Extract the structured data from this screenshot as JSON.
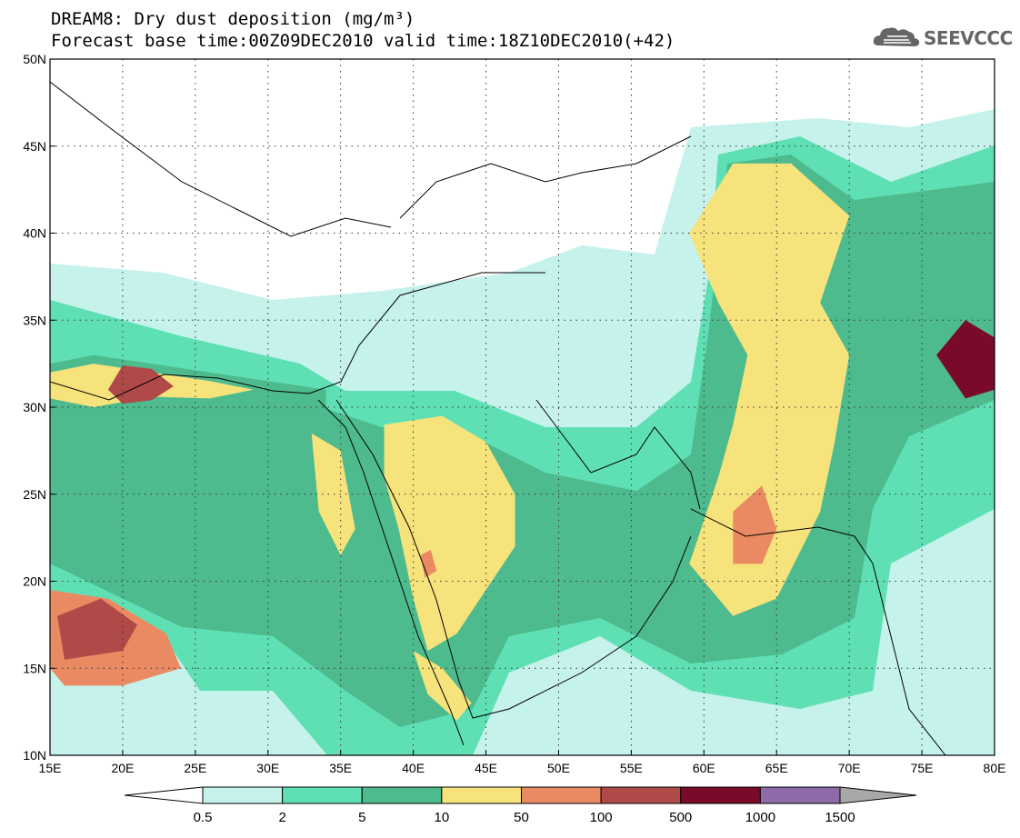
{
  "title": {
    "line1": "DREAM8: Dry dust deposition (mg/m³)",
    "line2": "Forecast base time:00Z09DEC2010 valid time:18Z10DEC2010(+42)"
  },
  "logo": {
    "text": "SEEVCCC",
    "icon": "cloud-icon"
  },
  "map": {
    "lon_range": [
      15,
      80
    ],
    "lat_range": [
      10,
      50
    ],
    "lon_ticks": [
      "15E",
      "20E",
      "25E",
      "30E",
      "35E",
      "40E",
      "45E",
      "50E",
      "55E",
      "60E",
      "65E",
      "70E",
      "75E",
      "80E"
    ],
    "lat_ticks": [
      "50N",
      "45N",
      "40N",
      "35N",
      "30N",
      "25N",
      "20N",
      "15N",
      "10N"
    ],
    "gridlines": "dotted"
  },
  "colorbar": {
    "labels": [
      "0.5",
      "2",
      "5",
      "10",
      "50",
      "100",
      "500",
      "1000",
      "1500"
    ],
    "colors": [
      "#c6f2ec",
      "#5fe0b4",
      "#4dbb8e",
      "#f7e37b",
      "#ea8a63",
      "#b04a48",
      "#7a0a2a",
      "#8f6aa8"
    ],
    "under_color": "#ffffff",
    "over_color": "#a8a8a8"
  },
  "regions": [
    {
      "name": "sahara-north-plume",
      "level": 2,
      "color": "#4dbb8e",
      "points": [
        [
          15,
          32.5
        ],
        [
          18,
          33
        ],
        [
          22,
          32.5
        ],
        [
          26,
          32
        ],
        [
          30,
          31.5
        ],
        [
          34,
          31
        ],
        [
          34,
          29.8
        ],
        [
          30,
          30
        ],
        [
          26,
          30.5
        ],
        [
          22,
          30.3
        ],
        [
          18,
          29.5
        ],
        [
          15,
          30
        ]
      ]
    },
    {
      "name": "sahara-north-core",
      "level": 4,
      "color": "#f7e37b",
      "points": [
        [
          15,
          32
        ],
        [
          18,
          32.5
        ],
        [
          22,
          32
        ],
        [
          26,
          31.5
        ],
        [
          29,
          31
        ],
        [
          26,
          30.5
        ],
        [
          22,
          30.6
        ],
        [
          18,
          30
        ],
        [
          15,
          30.5
        ]
      ]
    },
    {
      "name": "libya-coast-max",
      "level": 6,
      "color": "#b04a48",
      "points": [
        [
          19,
          31
        ],
        [
          20,
          32.4
        ],
        [
          22,
          32.2
        ],
        [
          23.5,
          31.2
        ],
        [
          22,
          30.4
        ],
        [
          20,
          30.2
        ]
      ]
    },
    {
      "name": "arabia-yellow",
      "level": 4,
      "color": "#f7e37b",
      "points": [
        [
          38,
          29
        ],
        [
          42,
          29.5
        ],
        [
          45,
          28
        ],
        [
          47,
          25
        ],
        [
          47,
          22
        ],
        [
          45,
          19.5
        ],
        [
          43,
          17
        ],
        [
          41,
          16
        ],
        [
          40,
          19
        ],
        [
          39,
          23
        ],
        [
          38,
          26
        ]
      ]
    },
    {
      "name": "arabia-orange",
      "level": 5,
      "color": "#ea8a63",
      "points": [
        [
          40.5,
          21.5
        ],
        [
          41.2,
          21.8
        ],
        [
          41.6,
          20.6
        ],
        [
          40.8,
          20.2
        ]
      ]
    },
    {
      "name": "nile-yellow",
      "level": 4,
      "color": "#f7e37b",
      "points": [
        [
          33,
          28.5
        ],
        [
          35,
          27.5
        ],
        [
          36,
          23
        ],
        [
          35,
          21.5
        ],
        [
          33.5,
          24
        ]
      ]
    },
    {
      "name": "chad-sudan-core",
      "level": 5,
      "color": "#ea8a63",
      "points": [
        [
          15,
          19.5
        ],
        [
          19,
          19
        ],
        [
          23,
          17
        ],
        [
          24,
          15
        ],
        [
          20,
          14
        ],
        [
          16,
          14
        ],
        [
          15,
          15
        ]
      ]
    },
    {
      "name": "chad-max",
      "level": 6,
      "color": "#b04a48",
      "points": [
        [
          15.5,
          18
        ],
        [
          18.5,
          19
        ],
        [
          21,
          17.5
        ],
        [
          20,
          16
        ],
        [
          16,
          15.5
        ]
      ]
    },
    {
      "name": "pakistan-yellow",
      "level": 4,
      "color": "#f7e37b",
      "points": [
        [
          59,
          40
        ],
        [
          62,
          44
        ],
        [
          66,
          44
        ],
        [
          70,
          41
        ],
        [
          68,
          36
        ],
        [
          70,
          33
        ],
        [
          69,
          28
        ],
        [
          68,
          24
        ],
        [
          65,
          19
        ],
        [
          62,
          18
        ],
        [
          59,
          21
        ],
        [
          61,
          26
        ],
        [
          62,
          29
        ],
        [
          63,
          33
        ],
        [
          61,
          36
        ]
      ]
    },
    {
      "name": "pakistan-orange",
      "level": 5,
      "color": "#ea8a63",
      "points": [
        [
          62,
          24
        ],
        [
          64,
          25.5
        ],
        [
          65,
          23
        ],
        [
          64,
          21
        ],
        [
          62,
          21
        ]
      ]
    },
    {
      "name": "india-max",
      "level": 7,
      "color": "#7a0a2a",
      "points": [
        [
          76,
          33
        ],
        [
          78,
          35
        ],
        [
          80,
          34
        ],
        [
          80,
          31
        ],
        [
          78,
          30.5
        ]
      ]
    },
    {
      "name": "red-sea-yellow",
      "level": 4,
      "color": "#f7e37b",
      "points": [
        [
          40,
          16
        ],
        [
          42,
          15
        ],
        [
          44,
          13
        ],
        [
          43,
          12
        ],
        [
          41,
          13.5
        ]
      ]
    }
  ]
}
